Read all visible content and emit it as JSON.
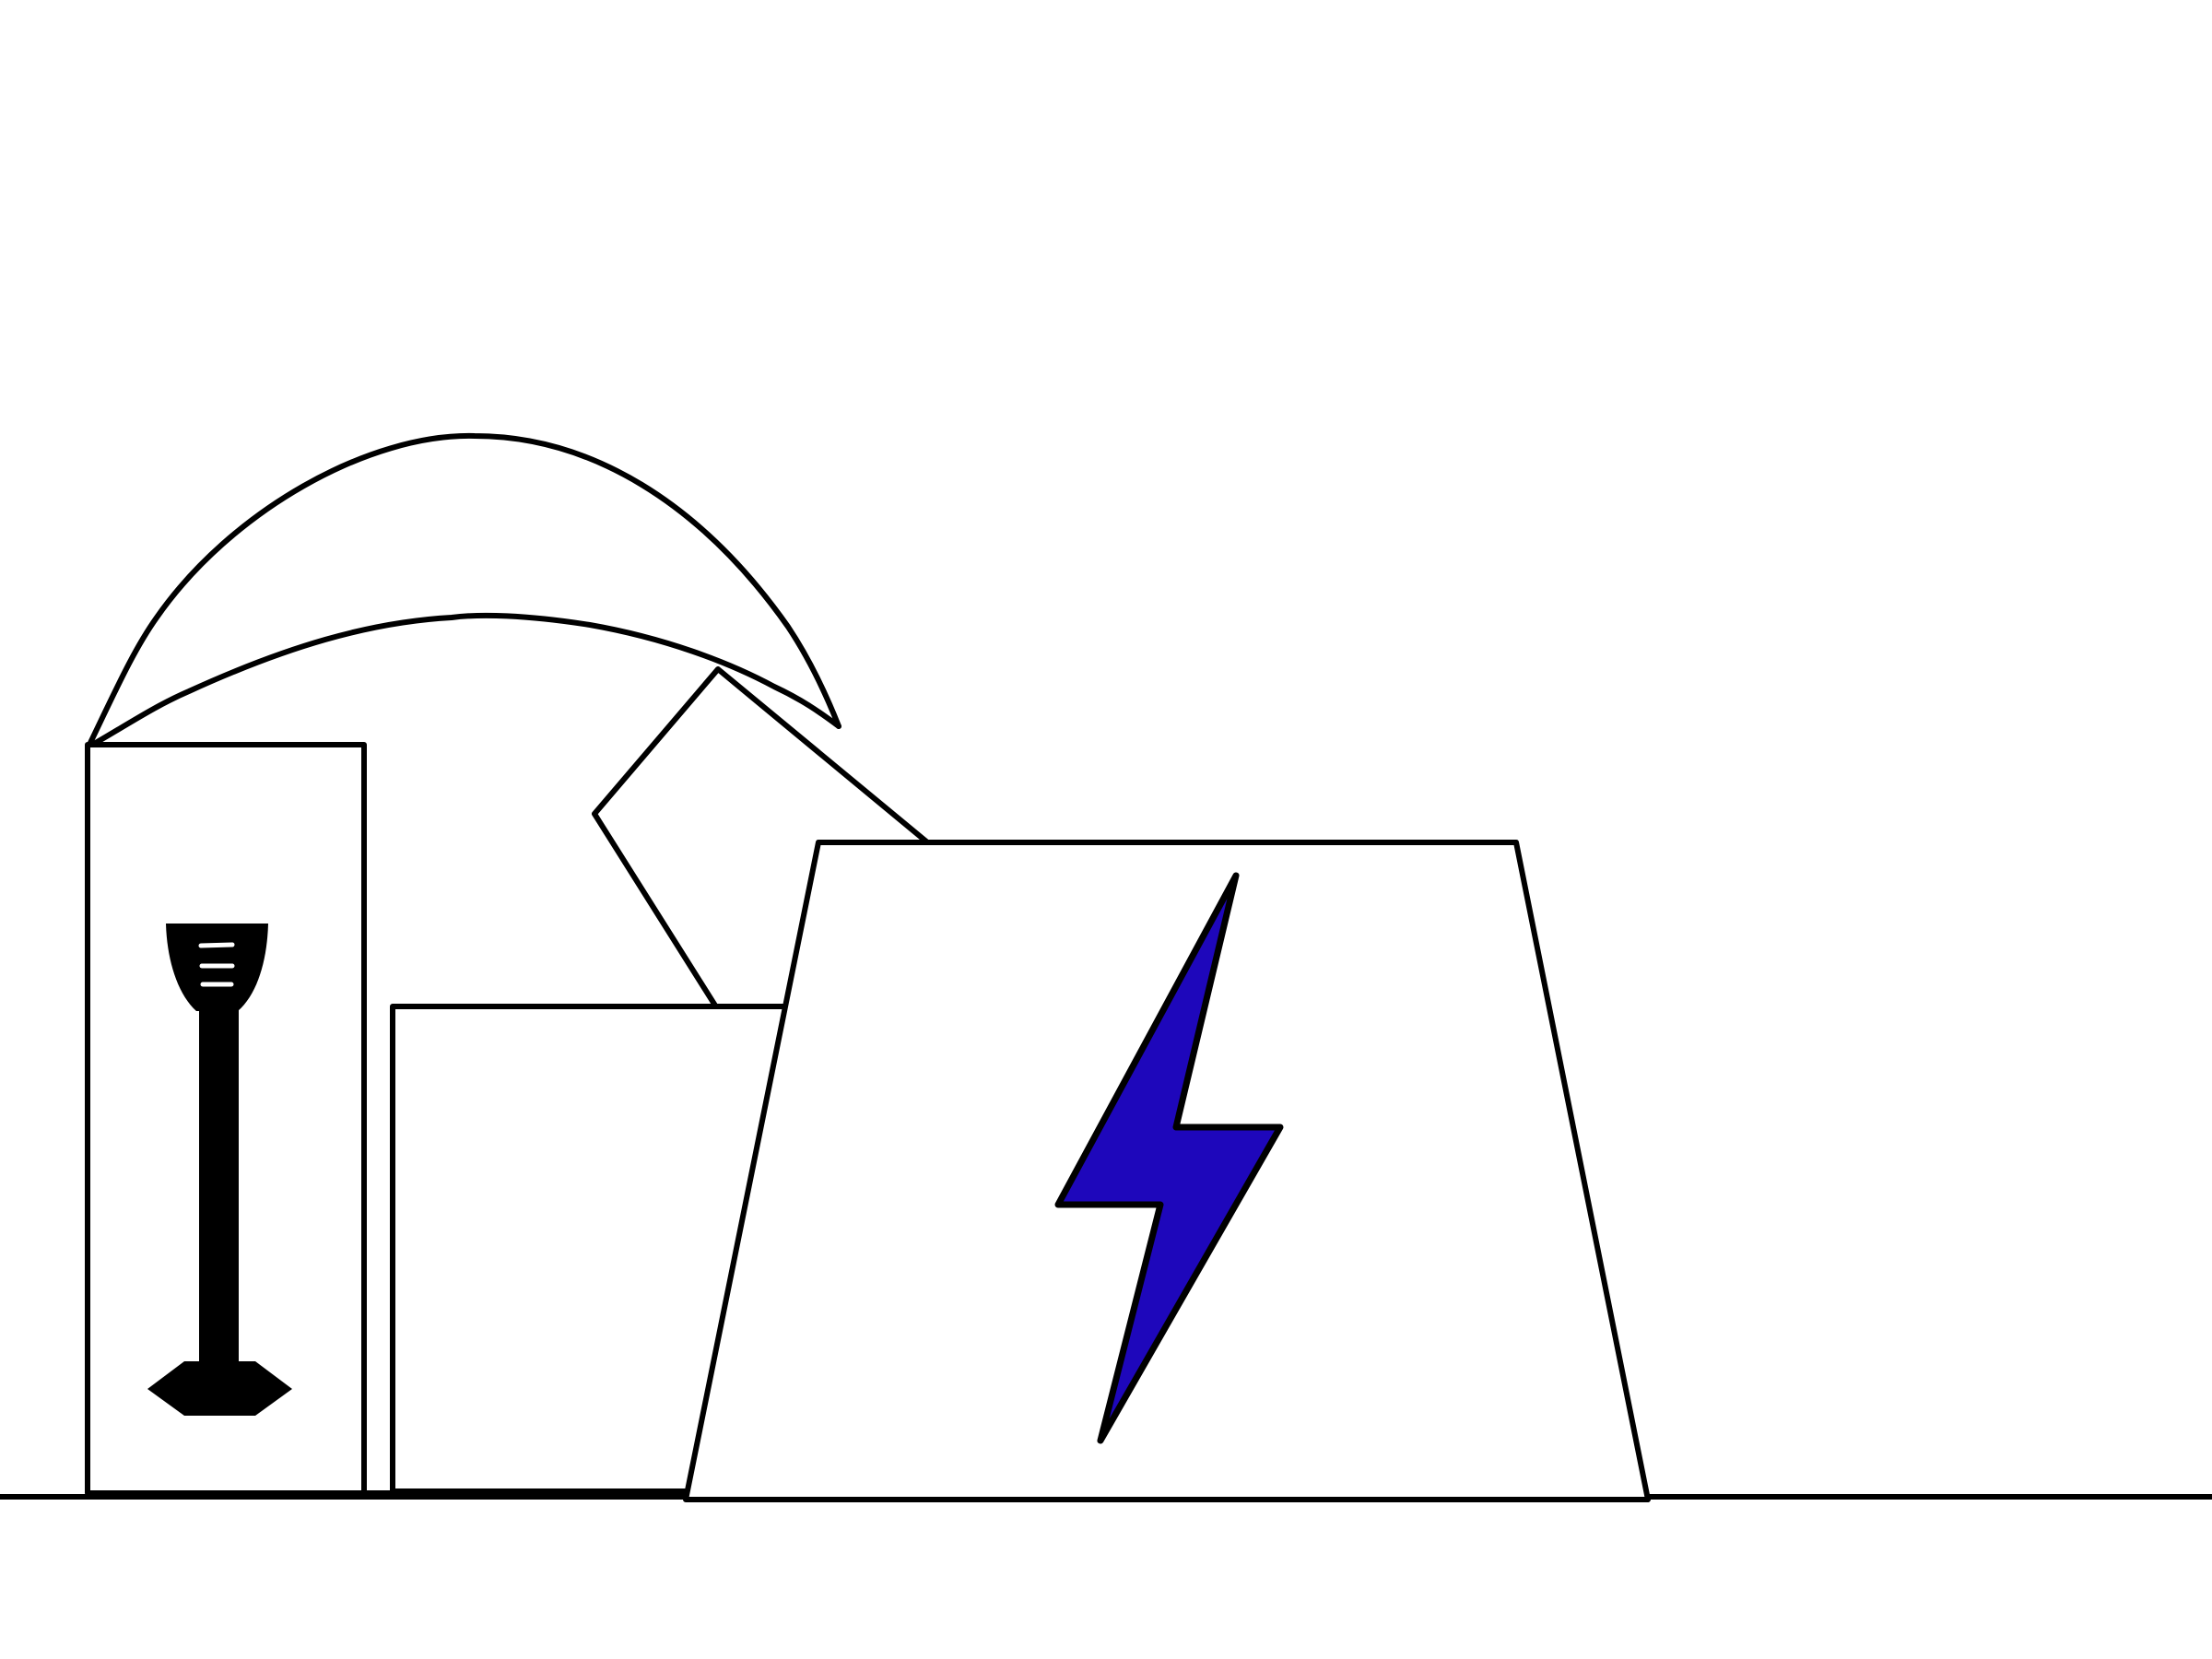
{
  "scene": {
    "background_color": "#ffffff",
    "outline_color": "#000000",
    "bolt_color": "#1e07bb",
    "icons": [
      "ground-line",
      "umbrella-canopy",
      "tall-cabinet",
      "microphone-stand",
      "low-box",
      "tilted-box",
      "trapezoid-battery-block",
      "lightning-bolt-icon"
    ]
  }
}
